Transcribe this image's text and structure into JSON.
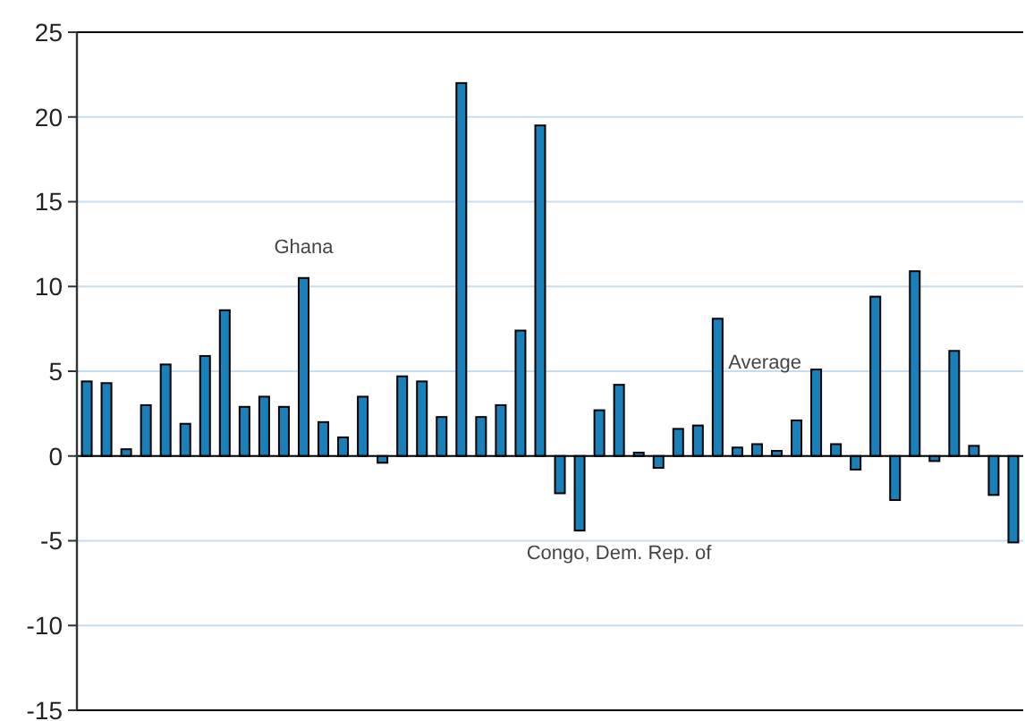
{
  "chart_data": {
    "type": "bar",
    "categories": [
      null,
      null,
      null,
      null,
      null,
      null,
      null,
      null,
      null,
      null,
      null,
      null,
      null,
      null,
      null,
      null,
      null,
      null,
      null,
      null,
      null,
      null,
      null,
      null,
      null,
      null,
      null,
      null,
      null,
      null,
      null,
      null,
      null,
      null,
      null,
      null,
      null,
      null,
      null,
      null,
      null,
      null,
      null,
      null,
      null,
      null,
      null,
      null
    ],
    "values": [
      4.4,
      4.3,
      0.4,
      3.0,
      5.4,
      1.9,
      5.9,
      8.6,
      2.9,
      3.5,
      2.9,
      10.5,
      2.0,
      1.1,
      3.5,
      -0.4,
      4.7,
      4.4,
      2.3,
      22.0,
      2.3,
      3.0,
      7.4,
      19.5,
      -2.2,
      -4.4,
      2.7,
      4.2,
      0.2,
      -0.7,
      1.6,
      1.8,
      8.1,
      0.5,
      0.7,
      0.3,
      2.1,
      5.1,
      0.7,
      -0.8,
      9.4,
      -2.6,
      10.9,
      -0.3,
      6.2,
      0.6,
      -2.3,
      -5.1
    ],
    "color": "#1a80b9",
    "ylim": [
      -15,
      25
    ],
    "yticks": [
      -15,
      -10,
      -5,
      0,
      5,
      10,
      15,
      20,
      25
    ],
    "grid": "y",
    "annotations": [
      "Ghana",
      "Congo, Dem. Rep. of",
      "Average"
    ]
  }
}
